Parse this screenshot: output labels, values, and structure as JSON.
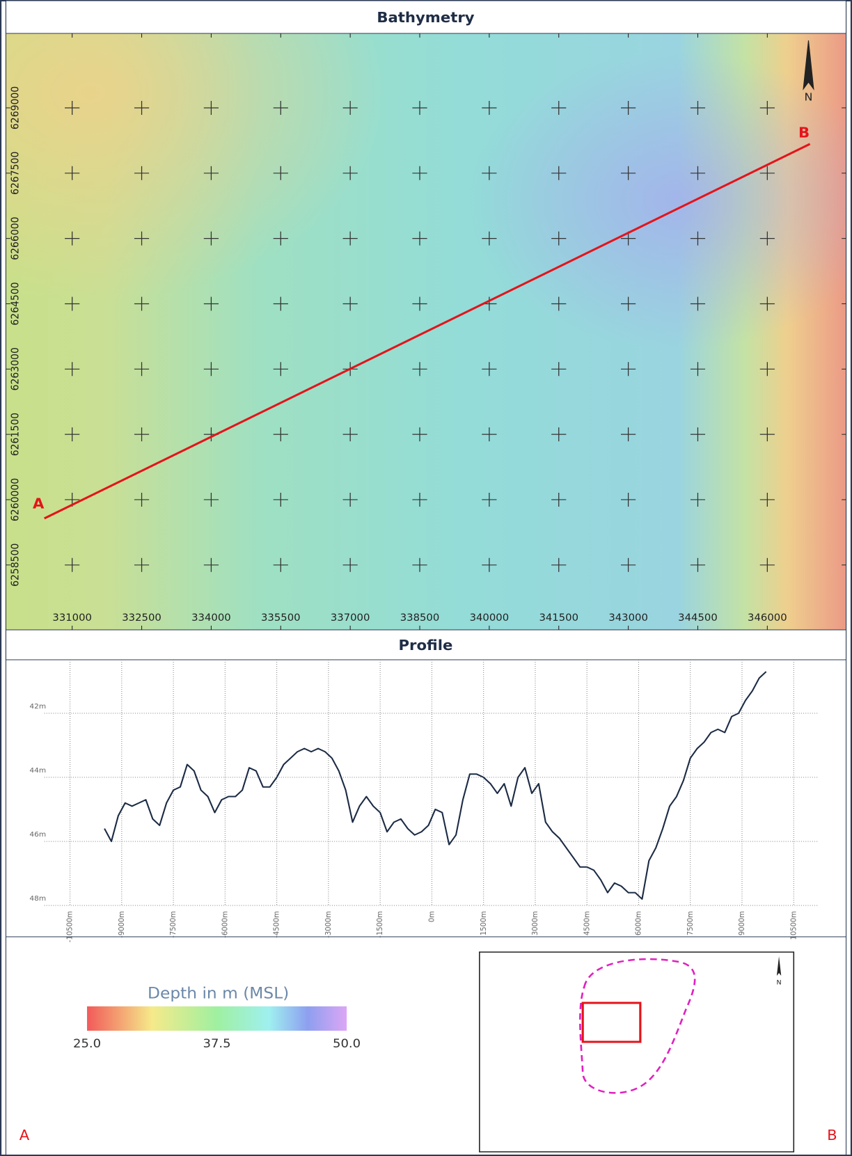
{
  "map": {
    "title": "Bathymetry",
    "north": "N",
    "xlim": [
      329570,
      347700
    ],
    "ylim": [
      6257010,
      6270710
    ],
    "xticks": [
      331000,
      332500,
      334000,
      335500,
      337000,
      338500,
      340000,
      341500,
      343000,
      344500,
      346000
    ],
    "yticks": [
      6258500,
      6260000,
      6261500,
      6263000,
      6264500,
      6266000,
      6267500,
      6269000
    ],
    "line": {
      "x": [
        330400,
        346920
      ],
      "y": [
        6259570,
        6268170
      ],
      "color": "#e5131a",
      "start_label": "A",
      "end_label": "B"
    }
  },
  "chart_data": {
    "type": "line",
    "title": "Profile",
    "color": "#1b2b45",
    "start_label": "A",
    "end_label": "B",
    "xlim": [
      -12360,
      12020
    ],
    "ylim": [
      48,
      40.33
    ],
    "xticks": [
      {
        "value": -10500,
        "label": "-10500m"
      },
      {
        "value": -9000,
        "label": "-9000m"
      },
      {
        "value": -7500,
        "label": "-7500m"
      },
      {
        "value": -6000,
        "label": "-6000m"
      },
      {
        "value": -4500,
        "label": "-4500m"
      },
      {
        "value": -3000,
        "label": "-3000m"
      },
      {
        "value": -1500,
        "label": "-1500m"
      },
      {
        "value": 0,
        "label": "0m"
      },
      {
        "value": 1500,
        "label": "1500m"
      },
      {
        "value": 3000,
        "label": "3000m"
      },
      {
        "value": 4500,
        "label": "4500m"
      },
      {
        "value": 6000,
        "label": "6000m"
      },
      {
        "value": 7500,
        "label": "7500m"
      },
      {
        "value": 9000,
        "label": "9000m"
      },
      {
        "value": 10500,
        "label": "10500m"
      }
    ],
    "yticks": [
      {
        "value": 42,
        "label": "42m"
      },
      {
        "value": 44,
        "label": "44m"
      },
      {
        "value": 46,
        "label": "46m"
      },
      {
        "value": 48,
        "label": "48m"
      }
    ],
    "x": [
      -9500,
      -9300,
      -9100,
      -8900,
      -8700,
      -8500,
      -8300,
      -8100,
      -7900,
      -7700,
      -7500,
      -7300,
      -7100,
      -6900,
      -6700,
      -6500,
      -6300,
      -6100,
      -5900,
      -5700,
      -5500,
      -5300,
      -5100,
      -4900,
      -4700,
      -4500,
      -4300,
      -4100,
      -3900,
      -3700,
      -3500,
      -3300,
      -3100,
      -2900,
      -2700,
      -2500,
      -2300,
      -2100,
      -1900,
      -1700,
      -1500,
      -1300,
      -1100,
      -900,
      -700,
      -500,
      -300,
      -100,
      100,
      300,
      500,
      700,
      900,
      1100,
      1300,
      1500,
      1700,
      1900,
      2100,
      2300,
      2500,
      2700,
      2900,
      3100,
      3300,
      3500,
      3700,
      3900,
      4100,
      4300,
      4500,
      4700,
      4900,
      5100,
      5300,
      5500,
      5700,
      5900,
      6100,
      6300,
      6500,
      6700,
      6900,
      7100,
      7300,
      7500,
      7700,
      7900,
      8100,
      8300,
      8500,
      8700,
      8900,
      9100,
      9300,
      9500,
      9700
    ],
    "values": [
      45.6,
      46.0,
      45.2,
      44.8,
      44.9,
      44.8,
      44.7,
      45.3,
      45.5,
      44.8,
      44.4,
      44.3,
      43.6,
      43.8,
      44.4,
      44.6,
      45.1,
      44.7,
      44.6,
      44.6,
      44.4,
      43.7,
      43.8,
      44.3,
      44.3,
      44.0,
      43.6,
      43.4,
      43.2,
      43.1,
      43.2,
      43.1,
      43.2,
      43.4,
      43.8,
      44.4,
      45.4,
      44.9,
      44.6,
      44.9,
      45.1,
      45.7,
      45.4,
      45.3,
      45.6,
      45.8,
      45.7,
      45.5,
      45.0,
      45.1,
      46.1,
      45.8,
      44.7,
      43.9,
      43.9,
      44.0,
      44.2,
      44.5,
      44.2,
      44.9,
      44.0,
      43.7,
      44.5,
      44.2,
      45.4,
      45.7,
      45.9,
      46.2,
      46.5,
      46.8,
      46.8,
      46.9,
      47.2,
      47.6,
      47.3,
      47.4,
      47.6,
      47.6,
      47.8,
      46.6,
      46.2,
      45.6,
      44.9,
      44.6,
      44.1,
      43.4,
      43.1,
      42.9,
      42.6,
      42.5,
      42.6,
      42.1,
      42.0,
      41.6,
      41.3,
      40.9,
      40.7
    ]
  },
  "legend": {
    "title": "Depth in m (MSL)",
    "range": [
      25,
      50
    ],
    "ticks": [
      {
        "value": 25,
        "label": "25.0"
      },
      {
        "value": 37.5,
        "label": "37.5"
      },
      {
        "value": 50,
        "label": "50.0"
      }
    ]
  },
  "inset": {
    "north": "N"
  }
}
